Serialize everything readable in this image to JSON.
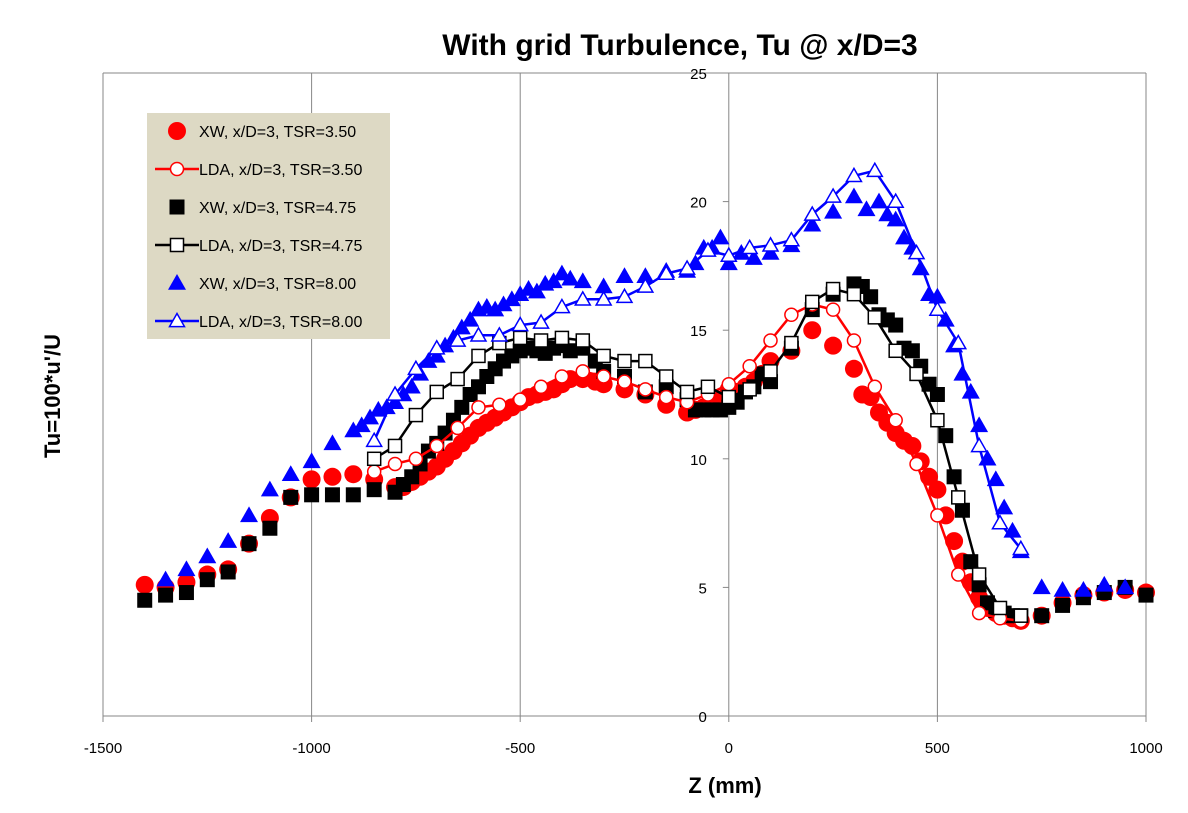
{
  "chart_data": {
    "type": "scatter",
    "title": "With grid Turbulence, Tu @ x/D=3",
    "xlabel": "Z (mm)",
    "ylabel": "Tu=100*u'/U",
    "xlim": [
      -1500,
      1000
    ],
    "ylim": [
      0,
      25
    ],
    "xticks": [
      -1500,
      -1000,
      -500,
      0,
      500,
      1000
    ],
    "yticks": [
      0,
      5,
      10,
      15,
      20,
      25
    ],
    "grid": "vertical",
    "legend_position": "top-left",
    "series": [
      {
        "name": "XW, x/D=3, TSR=3.50",
        "color": "#ff0000",
        "marker": "circle-filled",
        "line": false,
        "x": [
          -1400,
          -1350,
          -1300,
          -1250,
          -1200,
          -1150,
          -1100,
          -1050,
          -1000,
          -950,
          -900,
          -850,
          -800,
          -780,
          -760,
          -740,
          -720,
          -700,
          -680,
          -660,
          -640,
          -620,
          -600,
          -580,
          -560,
          -540,
          -520,
          -500,
          -480,
          -460,
          -440,
          -420,
          -400,
          -380,
          -350,
          -320,
          -300,
          -250,
          -200,
          -150,
          -100,
          -80,
          -60,
          -40,
          -20,
          0,
          20,
          40,
          60,
          80,
          100,
          150,
          200,
          250,
          300,
          320,
          340,
          360,
          380,
          400,
          420,
          440,
          460,
          480,
          500,
          520,
          540,
          560,
          580,
          600,
          620,
          640,
          660,
          680,
          700,
          750,
          800,
          850,
          900,
          950,
          1000
        ],
        "y": [
          5.1,
          5.0,
          5.2,
          5.5,
          5.7,
          6.7,
          7.7,
          8.5,
          9.2,
          9.3,
          9.4,
          9.2,
          8.9,
          8.9,
          9.1,
          9.3,
          9.5,
          9.7,
          10.0,
          10.3,
          10.6,
          10.9,
          11.2,
          11.4,
          11.6,
          11.8,
          12.0,
          12.2,
          12.4,
          12.5,
          12.6,
          12.7,
          12.9,
          13.1,
          13.1,
          13.0,
          12.9,
          12.7,
          12.5,
          12.1,
          11.8,
          11.9,
          12.0,
          12.1,
          12.3,
          12.7,
          12.6,
          12.8,
          13.0,
          13.3,
          13.8,
          14.2,
          15.0,
          14.4,
          13.5,
          12.5,
          12.4,
          11.8,
          11.4,
          11.0,
          10.7,
          10.5,
          9.9,
          9.3,
          8.8,
          7.8,
          6.8,
          6.0,
          5.2,
          4.6,
          4.2,
          4.0,
          3.9,
          3.8,
          3.7,
          3.9,
          4.4,
          4.7,
          4.8,
          4.9,
          4.8
        ]
      },
      {
        "name": "LDA, x/D=3, TSR=3.50",
        "color": "#ff0000",
        "marker": "circle-open",
        "line": true,
        "x": [
          -850,
          -800,
          -750,
          -700,
          -650,
          -600,
          -550,
          -500,
          -450,
          -400,
          -350,
          -300,
          -250,
          -200,
          -150,
          -100,
          -50,
          0,
          50,
          100,
          150,
          200,
          250,
          300,
          350,
          400,
          450,
          500,
          550,
          600,
          650,
          700
        ],
        "y": [
          9.5,
          9.8,
          10.0,
          10.5,
          11.2,
          12.0,
          12.1,
          12.3,
          12.8,
          13.2,
          13.4,
          13.2,
          13.0,
          12.7,
          12.4,
          12.2,
          12.5,
          12.9,
          13.6,
          14.6,
          15.6,
          16.0,
          15.8,
          14.6,
          12.8,
          11.5,
          9.8,
          7.8,
          5.5,
          4.0,
          3.8,
          3.7
        ]
      },
      {
        "name": "XW, x/D=3, TSR=4.75",
        "color": "#000000",
        "marker": "square-filled",
        "line": false,
        "x": [
          -1400,
          -1350,
          -1300,
          -1250,
          -1200,
          -1150,
          -1100,
          -1050,
          -1000,
          -950,
          -900,
          -850,
          -800,
          -780,
          -760,
          -740,
          -720,
          -700,
          -680,
          -660,
          -640,
          -620,
          -600,
          -580,
          -560,
          -540,
          -520,
          -500,
          -480,
          -460,
          -440,
          -420,
          -400,
          -380,
          -350,
          -320,
          -300,
          -250,
          -200,
          -150,
          -100,
          -80,
          -60,
          -40,
          -20,
          0,
          20,
          40,
          60,
          80,
          100,
          150,
          200,
          250,
          300,
          320,
          340,
          360,
          380,
          400,
          420,
          440,
          460,
          480,
          500,
          520,
          540,
          560,
          580,
          600,
          620,
          640,
          660,
          680,
          700,
          750,
          800,
          850,
          900,
          950,
          1000
        ],
        "y": [
          4.5,
          4.7,
          4.8,
          5.3,
          5.6,
          6.7,
          7.3,
          8.5,
          8.6,
          8.6,
          8.6,
          8.8,
          8.7,
          9.0,
          9.3,
          9.8,
          10.3,
          10.6,
          11.0,
          11.5,
          12.0,
          12.5,
          12.8,
          13.2,
          13.5,
          13.8,
          14.0,
          14.2,
          14.3,
          14.2,
          14.1,
          14.3,
          14.4,
          14.2,
          14.3,
          13.8,
          13.4,
          13.2,
          12.6,
          12.8,
          12.3,
          11.9,
          11.9,
          11.9,
          11.9,
          12.0,
          12.2,
          12.6,
          12.8,
          13.3,
          13.0,
          14.3,
          15.8,
          16.4,
          16.8,
          16.7,
          16.3,
          15.6,
          15.4,
          15.2,
          14.3,
          14.2,
          13.6,
          12.9,
          12.5,
          10.9,
          9.3,
          8.0,
          6.0,
          5.1,
          4.4,
          4.1,
          4.0,
          3.9,
          3.9,
          3.9,
          4.3,
          4.6,
          4.8,
          5.0,
          4.7
        ]
      },
      {
        "name": "LDA, x/D=3, TSR=4.75",
        "color": "#000000",
        "marker": "square-open",
        "line": true,
        "x": [
          -850,
          -800,
          -750,
          -700,
          -650,
          -600,
          -550,
          -500,
          -450,
          -400,
          -350,
          -300,
          -250,
          -200,
          -150,
          -100,
          -50,
          0,
          50,
          100,
          150,
          200,
          250,
          300,
          350,
          400,
          450,
          500,
          550,
          600,
          650,
          700
        ],
        "y": [
          10.0,
          10.5,
          11.7,
          12.6,
          13.1,
          14.0,
          14.5,
          14.7,
          14.6,
          14.7,
          14.6,
          14.0,
          13.8,
          13.8,
          13.2,
          12.6,
          12.8,
          12.4,
          12.7,
          13.4,
          14.5,
          16.1,
          16.6,
          16.4,
          15.5,
          14.2,
          13.3,
          11.5,
          8.5,
          5.5,
          4.2,
          3.9
        ]
      },
      {
        "name": "XW, x/D=3, TSR=8.00",
        "color": "#0000ff",
        "marker": "triangle-filled",
        "line": false,
        "x": [
          -1350,
          -1300,
          -1250,
          -1200,
          -1150,
          -1100,
          -1050,
          -1000,
          -950,
          -900,
          -880,
          -860,
          -840,
          -820,
          -800,
          -780,
          -760,
          -740,
          -720,
          -700,
          -680,
          -660,
          -640,
          -620,
          -600,
          -580,
          -560,
          -540,
          -520,
          -500,
          -480,
          -460,
          -440,
          -420,
          -400,
          -380,
          -350,
          -300,
          -250,
          -200,
          -150,
          -100,
          -80,
          -60,
          -40,
          -20,
          0,
          30,
          60,
          100,
          150,
          200,
          250,
          300,
          330,
          360,
          380,
          400,
          420,
          440,
          460,
          480,
          500,
          520,
          540,
          560,
          580,
          600,
          620,
          640,
          660,
          680,
          700,
          750,
          800,
          850,
          900,
          950
        ],
        "y": [
          5.3,
          5.7,
          6.2,
          6.8,
          7.8,
          8.8,
          9.4,
          9.9,
          10.6,
          11.1,
          11.3,
          11.6,
          11.9,
          12.0,
          12.2,
          12.5,
          12.8,
          13.3,
          13.8,
          14.0,
          14.4,
          14.7,
          15.1,
          15.4,
          15.8,
          15.9,
          15.8,
          16.0,
          16.2,
          16.4,
          16.6,
          16.5,
          16.8,
          16.9,
          17.2,
          17.0,
          16.9,
          16.7,
          17.1,
          17.1,
          17.3,
          17.3,
          17.6,
          18.2,
          18.2,
          18.6,
          17.6,
          18.0,
          17.8,
          18.0,
          18.3,
          19.1,
          19.6,
          20.2,
          19.7,
          20.0,
          19.5,
          19.3,
          18.6,
          18.2,
          17.4,
          16.4,
          16.3,
          15.4,
          14.4,
          13.3,
          12.6,
          11.3,
          10.0,
          9.2,
          8.1,
          7.2,
          6.4,
          5.0,
          4.9,
          4.9,
          5.1,
          5.0
        ]
      },
      {
        "name": "LDA, x/D=3, TSR=8.00",
        "color": "#0000ff",
        "marker": "triangle-open",
        "line": true,
        "x": [
          -850,
          -800,
          -750,
          -700,
          -650,
          -600,
          -550,
          -500,
          -450,
          -400,
          -350,
          -300,
          -250,
          -200,
          -150,
          -100,
          -50,
          0,
          50,
          100,
          150,
          200,
          250,
          300,
          350,
          400,
          450,
          500,
          550,
          600,
          650,
          700
        ],
        "y": [
          10.7,
          12.5,
          13.5,
          14.3,
          14.6,
          14.8,
          14.8,
          15.2,
          15.3,
          15.9,
          16.2,
          16.2,
          16.3,
          16.7,
          17.2,
          17.4,
          18.1,
          17.9,
          18.2,
          18.3,
          18.5,
          19.5,
          20.2,
          21.0,
          21.2,
          20.0,
          18.0,
          15.8,
          14.5,
          10.5,
          7.5,
          6.5
        ]
      }
    ]
  }
}
